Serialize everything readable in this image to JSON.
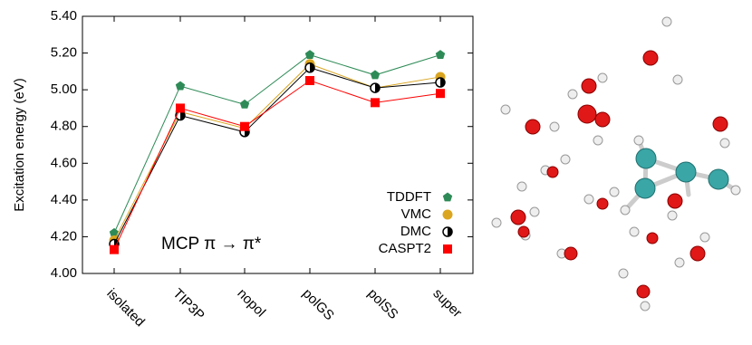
{
  "chart_data": {
    "type": "line",
    "ylabel": "Excitation energy (eV)",
    "annotation": "MCP  π → π*",
    "categories": [
      "isolated",
      "TIP3P",
      "nopol",
      "polGS",
      "polSS",
      "super"
    ],
    "series": [
      {
        "name": "TDDFT",
        "color": "#2e8b57",
        "marker": "pentagon",
        "values": [
          4.22,
          5.02,
          4.92,
          5.19,
          5.08,
          5.19
        ]
      },
      {
        "name": "VMC",
        "color": "#daa520",
        "marker": "circle",
        "values": [
          4.18,
          4.88,
          4.79,
          5.14,
          5.01,
          5.07
        ]
      },
      {
        "name": "DMC",
        "color": "#000000",
        "marker": "half-circle",
        "values": [
          4.16,
          4.86,
          4.77,
          5.12,
          5.01,
          5.04
        ]
      },
      {
        "name": "CASPT2",
        "color": "#ff0000",
        "marker": "square",
        "values": [
          4.13,
          4.9,
          4.8,
          5.05,
          4.93,
          4.98
        ]
      }
    ],
    "ylim": [
      4.0,
      5.4
    ],
    "yticks": [
      {
        "value": 4.0,
        "label": "4.00"
      },
      {
        "value": 4.2,
        "label": "4.20"
      },
      {
        "value": 4.4,
        "label": "4.40"
      },
      {
        "value": 4.6,
        "label": "4.60"
      },
      {
        "value": 4.8,
        "label": "4.80"
      },
      {
        "value": 5.0,
        "label": "5.00"
      },
      {
        "value": 5.2,
        "label": "5.20"
      },
      {
        "value": 5.4,
        "label": "5.40"
      }
    ],
    "legend": "lower right"
  }
}
